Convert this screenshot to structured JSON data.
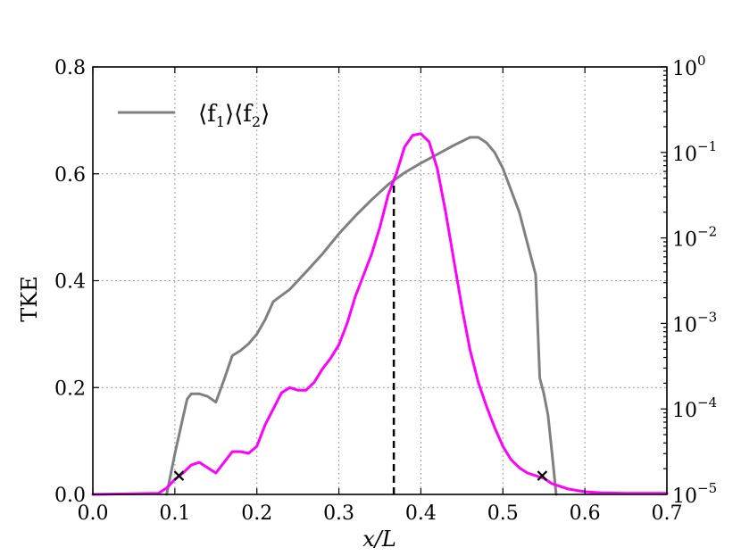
{
  "chart_data": {
    "type": "line",
    "xlabel": "x/L",
    "ylabel": "TKE",
    "xlim": [
      0.0,
      0.7
    ],
    "ylim": [
      0.0,
      0.8
    ],
    "y2_scale": "log",
    "y2lim": [
      1e-05,
      1
    ],
    "grid": true,
    "legend_position": "top-left",
    "x_ticks": [
      "0.0",
      "0.1",
      "0.2",
      "0.3",
      "0.4",
      "0.5",
      "0.6",
      "0.7"
    ],
    "y_ticks": [
      "0.0",
      "0.2",
      "0.4",
      "0.6",
      "0.8"
    ],
    "y2_ticks": [
      {
        "base": "10",
        "exp": "0"
      },
      {
        "base": "10",
        "exp": "−1"
      },
      {
        "base": "10",
        "exp": "−2"
      },
      {
        "base": "10",
        "exp": "−3"
      },
      {
        "base": "10",
        "exp": "−4"
      },
      {
        "base": "10",
        "exp": "−5"
      }
    ],
    "series": [
      {
        "name": "⟨f1⟩⟨f2⟩",
        "axis": "right",
        "color": "#808080",
        "x": [
          0.09,
          0.1,
          0.11,
          0.115,
          0.12,
          0.13,
          0.14,
          0.15,
          0.16,
          0.17,
          0.18,
          0.19,
          0.2,
          0.21,
          0.22,
          0.24,
          0.26,
          0.28,
          0.3,
          0.32,
          0.34,
          0.36,
          0.38,
          0.4,
          0.42,
          0.44,
          0.46,
          0.47,
          0.48,
          0.49,
          0.5,
          0.52,
          0.54,
          0.545,
          0.55,
          0.555,
          0.56,
          0.565
        ],
        "y": [
          1e-05,
          3e-05,
          8e-05,
          0.00013,
          0.00015,
          0.00015,
          0.00014,
          0.00012,
          0.00022,
          0.00042,
          0.00048,
          0.00058,
          0.00075,
          0.0011,
          0.0018,
          0.0025,
          0.004,
          0.0065,
          0.0112,
          0.018,
          0.028,
          0.042,
          0.058,
          0.075,
          0.095,
          0.121,
          0.15,
          0.15,
          0.13,
          0.1,
          0.065,
          0.02,
          0.0037,
          0.00023,
          0.00015,
          8.5e-05,
          3e-05,
          1e-05
        ]
      },
      {
        "name": "",
        "axis": "left",
        "color": "#ff00ff",
        "x": [
          0.0,
          0.08,
          0.09,
          0.1,
          0.11,
          0.12,
          0.13,
          0.14,
          0.15,
          0.16,
          0.17,
          0.18,
          0.19,
          0.2,
          0.21,
          0.22,
          0.23,
          0.24,
          0.25,
          0.26,
          0.27,
          0.28,
          0.29,
          0.3,
          0.31,
          0.32,
          0.33,
          0.34,
          0.35,
          0.36,
          0.37,
          0.38,
          0.39,
          0.4,
          0.41,
          0.42,
          0.43,
          0.44,
          0.45,
          0.46,
          0.47,
          0.48,
          0.49,
          0.5,
          0.51,
          0.52,
          0.53,
          0.54,
          0.55,
          0.56,
          0.58,
          0.6,
          0.62,
          0.65,
          0.7
        ],
        "y": [
          0.0,
          0.002,
          0.012,
          0.028,
          0.04,
          0.055,
          0.06,
          0.05,
          0.04,
          0.06,
          0.08,
          0.08,
          0.077,
          0.09,
          0.13,
          0.16,
          0.19,
          0.2,
          0.195,
          0.195,
          0.21,
          0.235,
          0.255,
          0.28,
          0.32,
          0.37,
          0.41,
          0.45,
          0.5,
          0.56,
          0.6,
          0.65,
          0.672,
          0.675,
          0.66,
          0.61,
          0.53,
          0.44,
          0.35,
          0.27,
          0.21,
          0.165,
          0.125,
          0.09,
          0.065,
          0.05,
          0.04,
          0.035,
          0.03,
          0.02,
          0.01,
          0.005,
          0.003,
          0.002,
          0.002
        ]
      }
    ],
    "vline": {
      "x": 0.367,
      "y_top": 0.58,
      "style": "dashed",
      "color": "#000000"
    },
    "markers": [
      {
        "x": 0.105,
        "y": 0.035,
        "symbol": "x"
      },
      {
        "x": 0.548,
        "y": 0.035,
        "symbol": "x"
      }
    ]
  },
  "legend": {
    "label_main": "⟨f",
    "label_sub1": "1",
    "label_mid": "⟩⟨f",
    "label_sub2": "2",
    "label_end": "⟩"
  }
}
